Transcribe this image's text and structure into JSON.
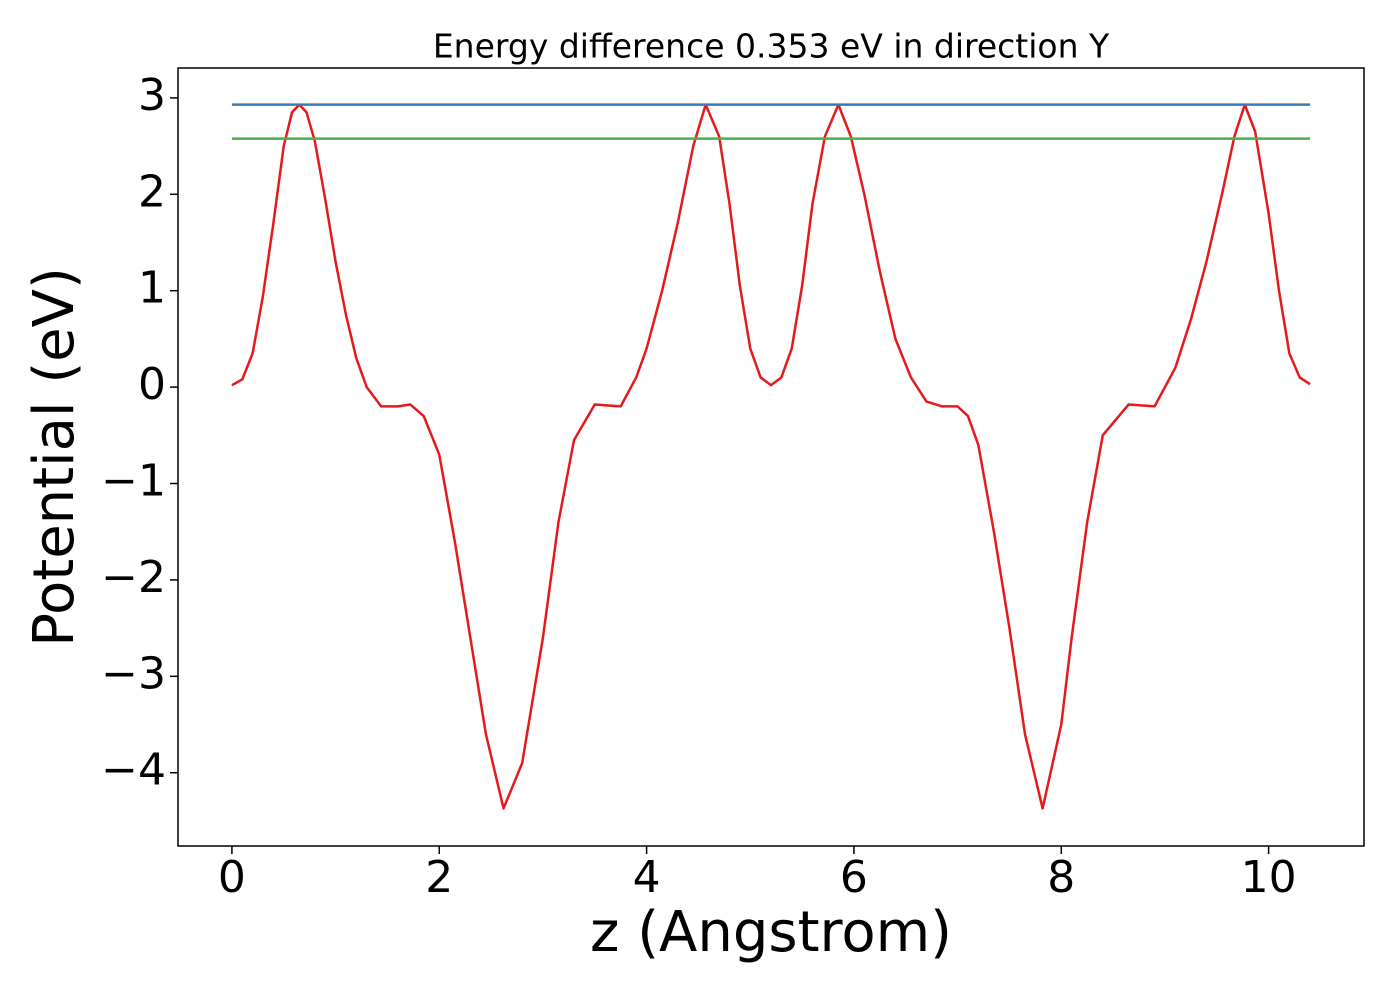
{
  "chart_data": {
    "type": "line",
    "title": "Energy difference 0.353 eV in direction Y",
    "x_label": "z (Angstrom)",
    "y_label": "Potential (eV)",
    "xlim": [
      -0.52,
      10.92
    ],
    "ylim": [
      -4.76,
      3.31
    ],
    "xticks": [
      0,
      2,
      4,
      6,
      8,
      10
    ],
    "yticks": [
      {
        "value": -4,
        "label": "−4"
      },
      {
        "value": -3,
        "label": "−3"
      },
      {
        "value": -2,
        "label": "−2"
      },
      {
        "value": -1,
        "label": "−1"
      },
      0,
      1,
      2,
      3
    ],
    "series": [
      {
        "color": "#e41a1c",
        "x": [
          0,
          0.1,
          0.2,
          0.3,
          0.4,
          0.5,
          0.58,
          0.65,
          0.72,
          0.8,
          0.9,
          1.0,
          1.1,
          1.2,
          1.3,
          1.44,
          1.6,
          1.72,
          1.85,
          2.0,
          2.15,
          2.3,
          2.45,
          2.62,
          2.8,
          3.0,
          3.15,
          3.3,
          3.5,
          3.75,
          3.9,
          4.0,
          4.15,
          4.3,
          4.45,
          4.57,
          4.7,
          4.8,
          4.9,
          5.0,
          5.1,
          5.2,
          5.3,
          5.4,
          5.5,
          5.6,
          5.72,
          5.85,
          5.97,
          6.1,
          6.25,
          6.4,
          6.55,
          6.7,
          6.85,
          7.0,
          7.1,
          7.2,
          7.35,
          7.5,
          7.65,
          7.82,
          8.0,
          8.1,
          8.25,
          8.4,
          8.65,
          8.9,
          9.1,
          9.25,
          9.4,
          9.55,
          9.67,
          9.77,
          9.87,
          10.0,
          10.1,
          10.2,
          10.3,
          10.4
        ],
        "values": [
          0.02,
          0.08,
          0.35,
          0.95,
          1.7,
          2.5,
          2.85,
          2.93,
          2.85,
          2.55,
          1.95,
          1.3,
          0.75,
          0.3,
          0.0,
          -0.2,
          -0.2,
          -0.18,
          -0.3,
          -0.7,
          -1.6,
          -2.6,
          -3.6,
          -4.37,
          -3.9,
          -2.6,
          -1.4,
          -0.55,
          -0.18,
          -0.2,
          0.1,
          0.4,
          1.0,
          1.7,
          2.5,
          2.93,
          2.6,
          1.9,
          1.05,
          0.4,
          0.1,
          0.02,
          0.1,
          0.4,
          1.05,
          1.9,
          2.6,
          2.93,
          2.6,
          2.0,
          1.2,
          0.5,
          0.1,
          -0.15,
          -0.2,
          -0.2,
          -0.3,
          -0.6,
          -1.5,
          -2.5,
          -3.6,
          -4.37,
          -3.5,
          -2.6,
          -1.4,
          -0.5,
          -0.18,
          -0.2,
          0.2,
          0.7,
          1.3,
          2.0,
          2.6,
          2.93,
          2.65,
          1.8,
          1.0,
          0.35,
          0.1,
          0.03
        ]
      },
      {
        "color": "#377eb8",
        "x": [
          0,
          10.4
        ],
        "values": [
          2.93,
          2.93
        ]
      },
      {
        "color": "#4daf4a",
        "x": [
          0,
          10.4
        ],
        "values": [
          2.577,
          2.577
        ]
      }
    ]
  }
}
